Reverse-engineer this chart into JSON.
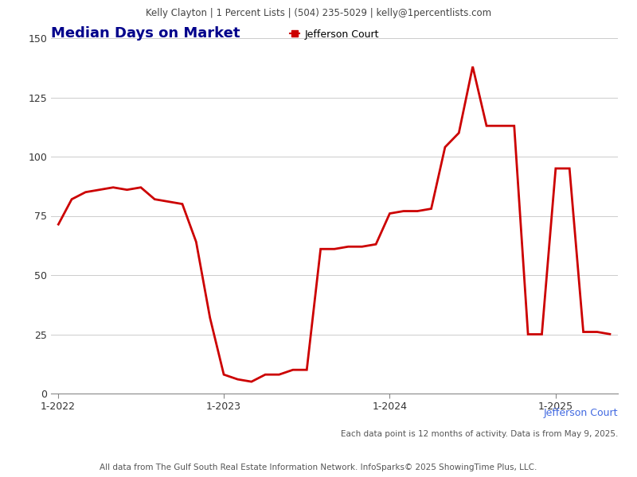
{
  "header_text": "Kelly Clayton | 1 Percent Lists | (504) 235-5029 | kelly@1percentlists.com",
  "title": "Median Days on Market",
  "footer_text1": "Each data point is 12 months of activity. Data is from May 9, 2025.",
  "footer_text2": "All data from The Gulf South Real Estate Information Network. InfoSparks© 2025 ShowingTime Plus, LLC.",
  "watermark": "Jefferson Court",
  "legend_label": "Jefferson Court",
  "line_color": "#cc0000",
  "title_color": "#00008b",
  "header_color": "#444444",
  "watermark_color": "#4169e1",
  "background_color": "#ffffff",
  "header_bg_color": "#e0e0e0",
  "y_data": [
    71,
    82,
    85,
    86,
    87,
    86,
    87,
    82,
    81,
    80,
    64,
    32,
    8,
    6,
    5,
    8,
    8,
    10,
    10,
    61,
    61,
    62,
    62,
    63,
    76,
    77,
    77,
    78,
    104,
    110,
    138,
    113,
    113,
    113,
    25,
    25,
    95,
    95,
    26,
    26,
    25
  ],
  "ylim": [
    0,
    150
  ],
  "yticks": [
    0,
    25,
    50,
    75,
    100,
    125,
    150
  ],
  "xtick_positions": [
    0,
    12,
    24,
    36
  ],
  "xtick_labels": [
    "1-2022",
    "1-2023",
    "1-2024",
    "1-2025"
  ]
}
